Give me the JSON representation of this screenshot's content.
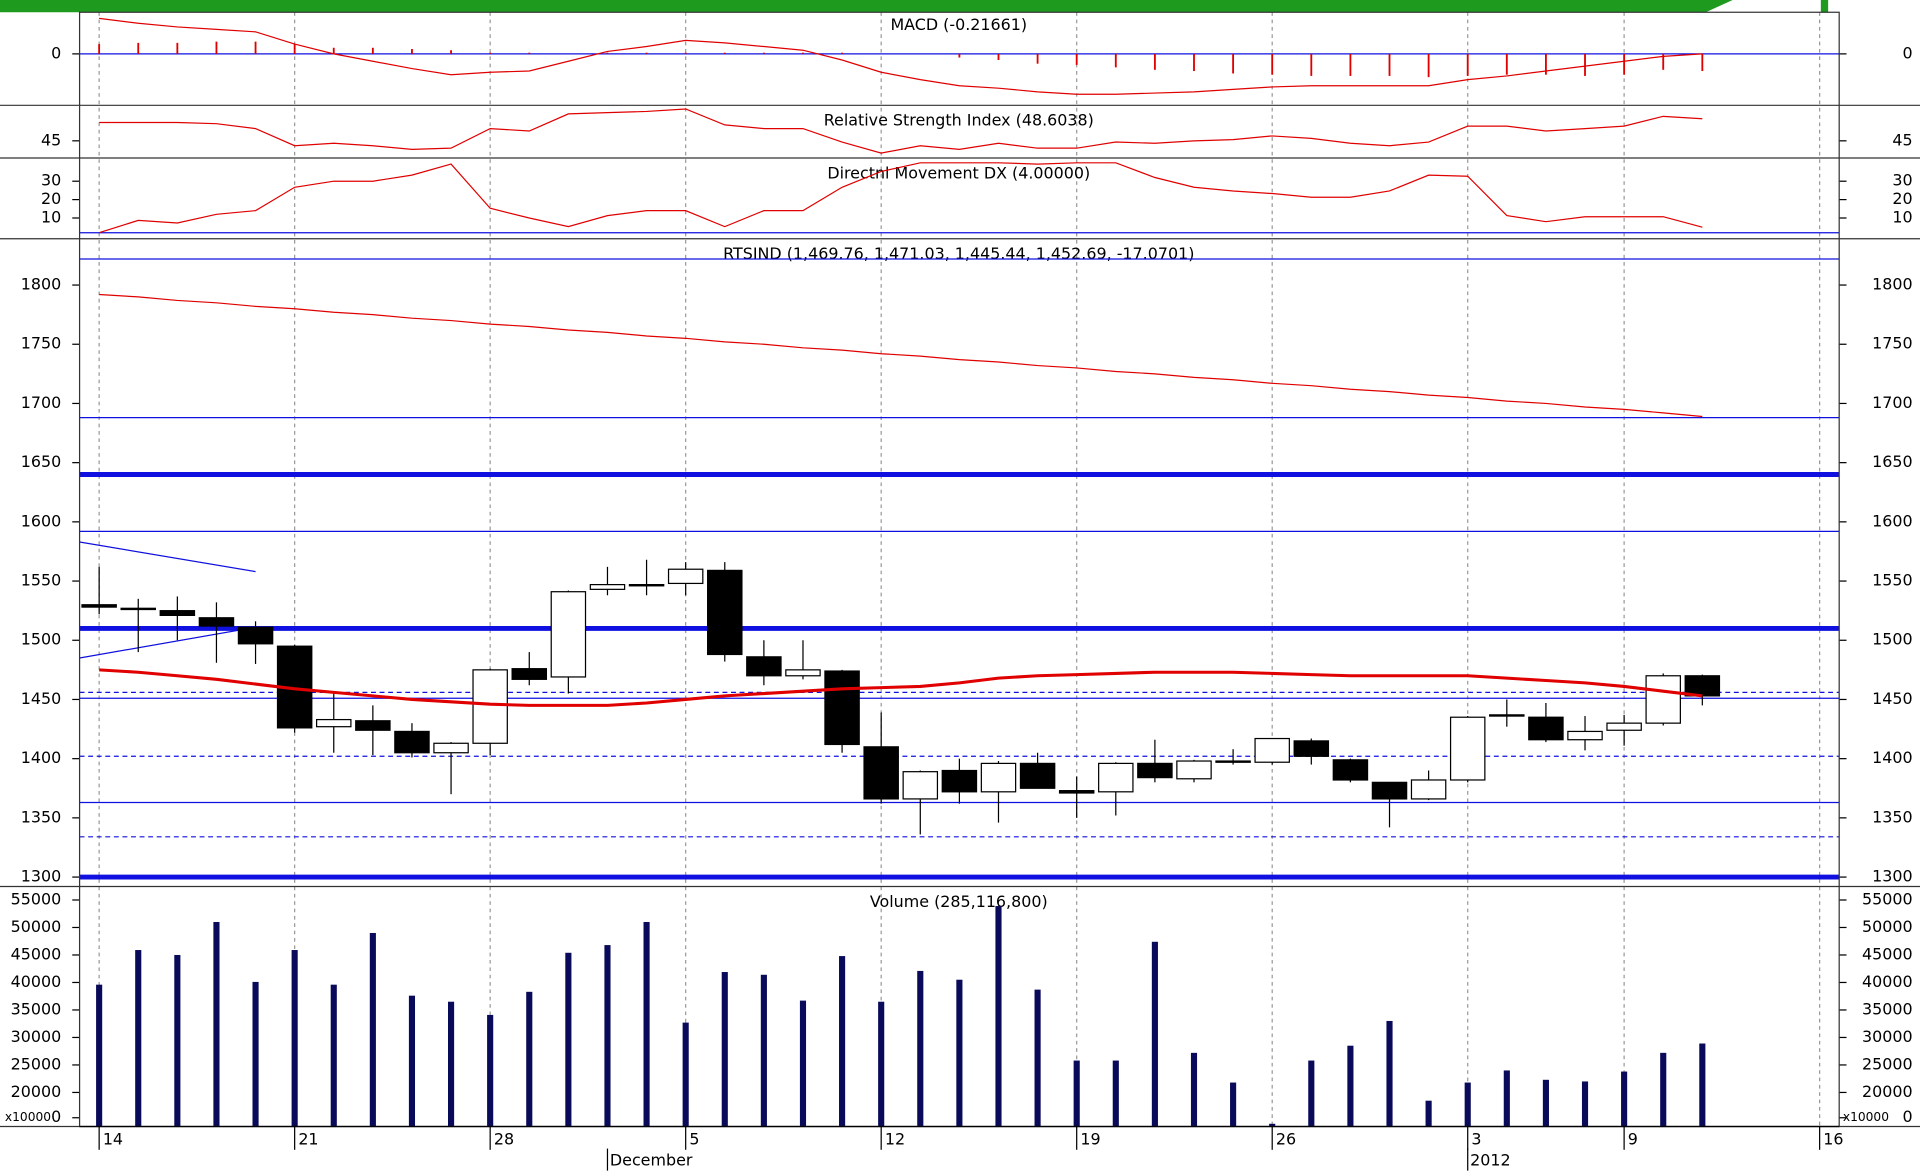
{
  "x_axis": {
    "xlim": [
      -0.5,
      44.5
    ],
    "xticks": [
      {
        "value": 0,
        "label": "14"
      },
      {
        "value": 5,
        "label": "21"
      },
      {
        "value": 10,
        "label": "28"
      },
      {
        "value": 15,
        "label": "5"
      },
      {
        "value": 20,
        "label": "12"
      },
      {
        "value": 25,
        "label": "19"
      },
      {
        "value": 30,
        "label": "26"
      },
      {
        "value": 35,
        "label": "3"
      },
      {
        "value": 39,
        "label": "9"
      },
      {
        "value": 44,
        "label": "16"
      }
    ],
    "month_ticks": [
      {
        "value": 13,
        "label": "December"
      },
      {
        "value": 35,
        "label": "2012"
      }
    ]
  },
  "chart_data": [
    {
      "type": "line",
      "title": "MACD (-0.21661)",
      "ylim": [
        -42,
        34
      ],
      "yticks": [
        0
      ],
      "hlines": [
        {
          "value": 0,
          "style": "thin"
        }
      ],
      "lines": [
        {
          "color": "#e00000",
          "style": "thin",
          "values": [
            29,
            25,
            22,
            20,
            18,
            8,
            0,
            -6,
            -12,
            -17,
            -15,
            -14,
            -6,
            2,
            6,
            11,
            9,
            6,
            3,
            -5,
            -15,
            -21,
            -26,
            -28,
            -31,
            -33,
            -33,
            -32,
            -31,
            -29,
            -27,
            -26,
            -26,
            -26,
            -26,
            -21,
            -18,
            -14,
            -10,
            -6,
            -2,
            0
          ]
        }
      ],
      "bars": {
        "color": "#e00000",
        "values": [
          8,
          9,
          9,
          10,
          10,
          8,
          5,
          5,
          4,
          3,
          1,
          1,
          0,
          1,
          1,
          1,
          1,
          1,
          1,
          1,
          0,
          0,
          -3,
          -5,
          -8,
          -9,
          -11,
          -13,
          -14,
          -16,
          -17,
          -18,
          -18,
          -18,
          -19,
          -18,
          -17,
          -17,
          -18,
          -17,
          -13,
          -14
        ]
      }
    },
    {
      "type": "line",
      "title": "Relative Strength Index (48.6038)",
      "ylim": [
        42.2,
        50.4
      ],
      "yticks": [
        45
      ],
      "lines": [
        {
          "color": "#e00000",
          "style": "thin",
          "values": [
            48,
            48,
            48,
            47.8,
            47,
            44.2,
            44.6,
            44.2,
            43.6,
            43.8,
            47,
            46.6,
            49.4,
            49.6,
            49.8,
            50.2,
            47.6,
            47,
            47,
            44.8,
            43,
            44.2,
            43.6,
            44.6,
            43.8,
            43.8,
            44.8,
            44.6,
            45,
            45.2,
            45.8,
            45.4,
            44.6,
            44.2,
            44.8,
            47.4,
            47.4,
            46.6,
            47,
            47.4,
            49,
            48.6
          ]
        }
      ]
    },
    {
      "type": "line",
      "title": "Directnl Movement DX (4.00000)",
      "ylim": [
        -1.3,
        41.3
      ],
      "yticks": [
        10,
        20,
        30
      ],
      "hlines": [
        {
          "value": 2,
          "style": "thin"
        }
      ],
      "lines": [
        {
          "color": "#e00000",
          "style": "thin",
          "values": [
            2,
            8.7,
            7.3,
            12,
            14,
            26.7,
            30,
            30,
            33.3,
            39.3,
            15.3,
            10,
            5.3,
            11.3,
            14,
            14,
            5.3,
            14,
            14,
            26.7,
            35.3,
            40,
            40,
            40,
            39.3,
            40,
            40,
            32,
            26.7,
            24.7,
            23.3,
            21.3,
            21.3,
            24.7,
            33.3,
            32.7,
            11.3,
            8,
            10.7,
            10.7,
            10.7,
            5
          ]
        }
      ]
    },
    {
      "type": "candlestick",
      "title": "RTSIND (1,469.76, 1,471.03, 1,445.44, 1,452.69, -17.0701)",
      "ylim": [
        1292,
        1837
      ],
      "yticks": [
        1300,
        1350,
        1400,
        1450,
        1500,
        1550,
        1600,
        1650,
        1700,
        1750,
        1800
      ],
      "open": [
        1530,
        1527,
        1525,
        1519,
        1511,
        1495,
        1427,
        1432,
        1423,
        1405,
        1413,
        1476,
        1469,
        1543,
        1547,
        1548,
        1559,
        1486,
        1470,
        1474,
        1410,
        1366,
        1390,
        1372,
        1396,
        1373,
        1372,
        1396,
        1383,
        1397,
        1397,
        1415,
        1399,
        1380,
        1366,
        1382,
        1437,
        1435,
        1416,
        1424,
        1430,
        1470
      ],
      "high": [
        1562,
        1535,
        1537,
        1532,
        1516,
        1496,
        1455,
        1445,
        1430,
        1414,
        1476,
        1490,
        1542,
        1562,
        1568,
        1566,
        1566,
        1500,
        1500,
        1475,
        1439,
        1390,
        1400,
        1398,
        1405,
        1385,
        1397,
        1416,
        1399,
        1408,
        1417,
        1417,
        1400,
        1380,
        1390,
        1436,
        1450,
        1447,
        1436,
        1437,
        1472,
        1471
      ],
      "low": [
        1522,
        1490,
        1500,
        1481,
        1480,
        1422,
        1405,
        1403,
        1401,
        1370,
        1403,
        1462,
        1455,
        1538,
        1538,
        1538,
        1482,
        1462,
        1467,
        1405,
        1362,
        1336,
        1362,
        1346,
        1375,
        1350,
        1352,
        1380,
        1380,
        1395,
        1395,
        1395,
        1380,
        1342,
        1365,
        1380,
        1427,
        1414,
        1407,
        1411,
        1428,
        1445
      ],
      "close": [
        1528,
        1526,
        1521,
        1512,
        1497,
        1426,
        1433,
        1424,
        1405,
        1413,
        1475,
        1467,
        1541,
        1547,
        1546,
        1560,
        1488,
        1470,
        1475,
        1412,
        1366,
        1389,
        1372,
        1396,
        1375,
        1371,
        1396,
        1384,
        1398,
        1398,
        1417,
        1402,
        1382,
        1366,
        1382,
        1435,
        1437,
        1416,
        1423,
        1430,
        1470,
        1453
      ],
      "hlines": [
        {
          "value": 1822,
          "style": "thin"
        },
        {
          "value": 1688,
          "style": "thin"
        },
        {
          "value": 1640,
          "style": "thick"
        },
        {
          "value": 1592,
          "style": "thin"
        },
        {
          "value": 1510,
          "style": "thick"
        },
        {
          "value": 1456,
          "style": "dashed"
        },
        {
          "value": 1451,
          "style": "thin"
        },
        {
          "value": 1402,
          "style": "dashed"
        },
        {
          "value": 1363,
          "style": "thin"
        },
        {
          "value": 1334,
          "style": "dashed"
        },
        {
          "value": 1300,
          "style": "thick"
        }
      ],
      "trendlines": [
        {
          "x": [
            -0.5,
            4
          ],
          "values": [
            1583,
            1558
          ]
        },
        {
          "x": [
            -0.5,
            4
          ],
          "values": [
            1485,
            1511
          ]
        }
      ],
      "lines": [
        {
          "color": "#e00000",
          "style": "thin",
          "values": [
            1792,
            1790,
            1787,
            1785,
            1782,
            1780,
            1777,
            1775,
            1772,
            1770,
            1767,
            1765,
            1762,
            1760,
            1757,
            1755,
            1752,
            1750,
            1747,
            1745,
            1742,
            1740,
            1737,
            1735,
            1732,
            1730,
            1727,
            1725,
            1722,
            1720,
            1717,
            1715,
            1712,
            1710,
            1707,
            1705,
            1702,
            1700,
            1697,
            1695,
            1692,
            1689
          ]
        },
        {
          "color": "#e00000",
          "style": "thick",
          "values": [
            1475,
            1473,
            1470,
            1467,
            1463,
            1459,
            1456,
            1453,
            1450,
            1448,
            1446,
            1445,
            1445,
            1445,
            1447,
            1450,
            1453,
            1455,
            1457,
            1459,
            1460,
            1461,
            1464,
            1468,
            1470,
            1471,
            1472,
            1473,
            1473,
            1473,
            1472,
            1471,
            1470,
            1470,
            1470,
            1470,
            1468,
            1466,
            1464,
            1461,
            1457,
            1453
          ]
        }
      ]
    },
    {
      "type": "bar",
      "title": "Volume (285,116,800)",
      "color": "#0a0a5a",
      "unit_label": "x10000",
      "ylim": [
        13800,
        57000
      ],
      "yticks": [
        {
          "value": 15400,
          "label": "0"
        },
        20000,
        25000,
        30000,
        35000,
        40000,
        45000,
        50000,
        55000
      ],
      "values": [
        39600,
        45900,
        45000,
        51000,
        40100,
        45900,
        39600,
        49000,
        37600,
        36500,
        34100,
        38300,
        45400,
        46800,
        51000,
        32700,
        41900,
        41400,
        36700,
        44800,
        36500,
        42100,
        40500,
        53900,
        38700,
        25800,
        25800,
        47400,
        27200,
        21800,
        14300,
        25800,
        28500,
        33000,
        18500,
        21800,
        24000,
        22300,
        22000,
        23800,
        27200,
        28900
      ]
    }
  ]
}
